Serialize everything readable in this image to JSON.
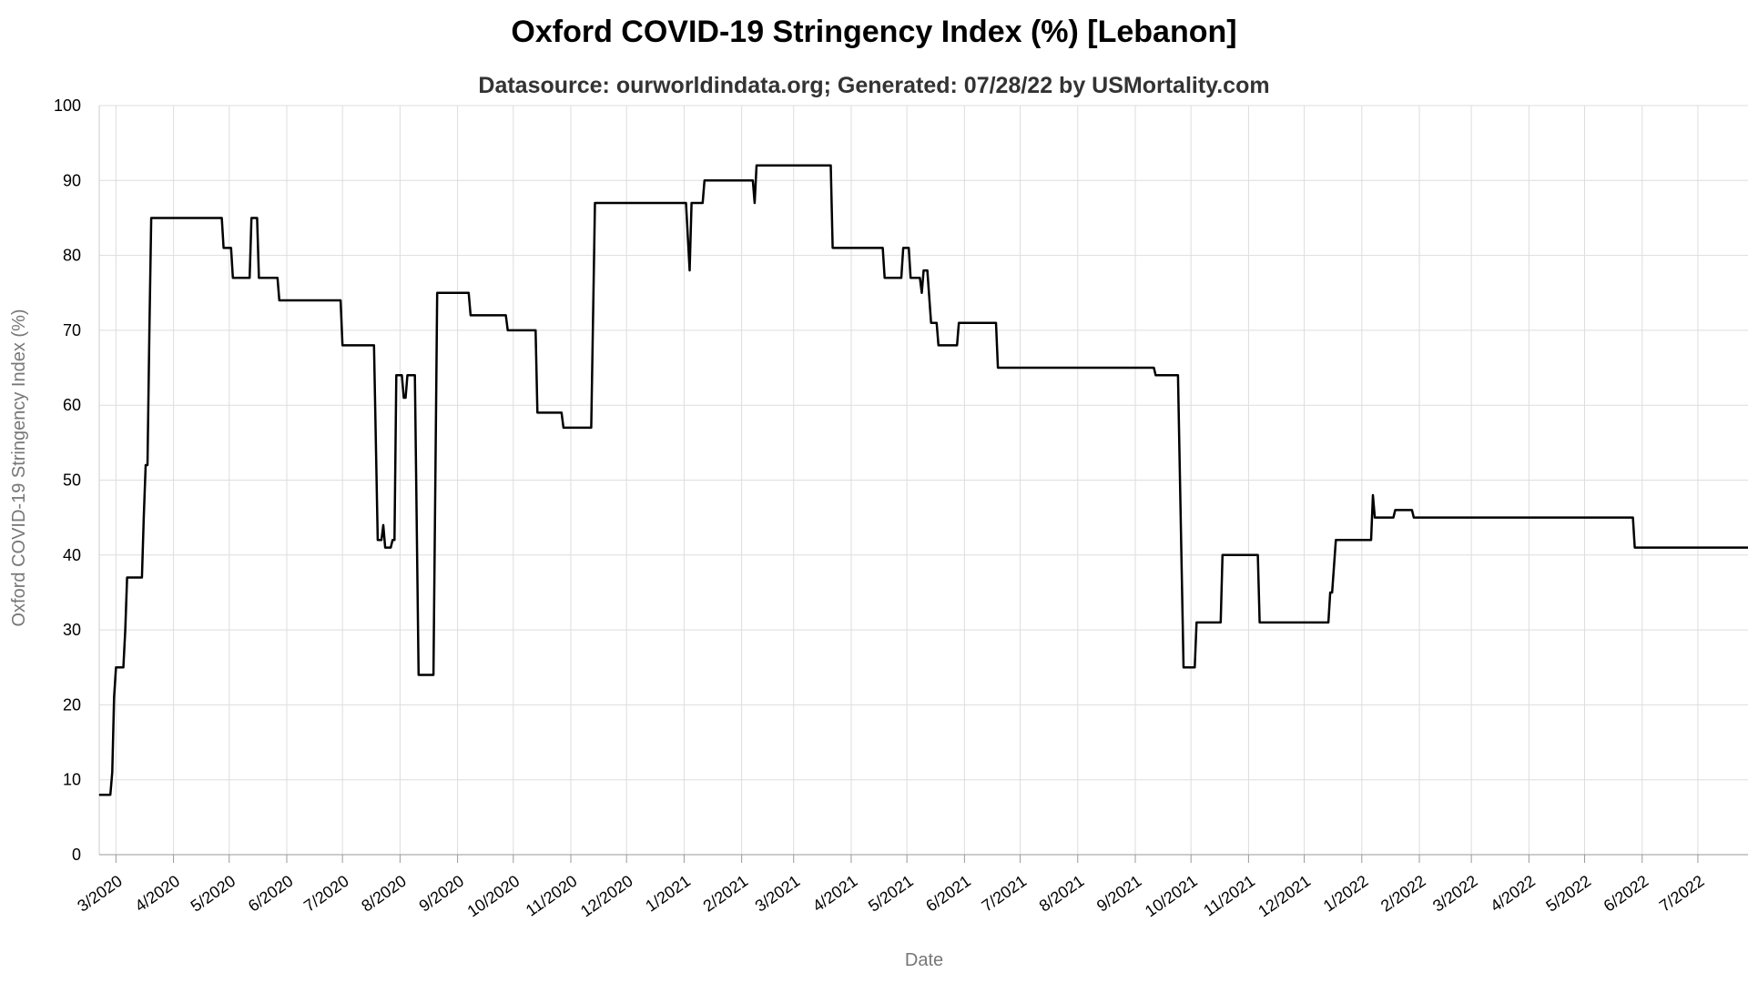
{
  "chart_data": {
    "type": "line",
    "title": "Oxford COVID-19 Stringency Index (%) [Lebanon]",
    "subtitle": "Datasource: ourworldindata.org; Generated: 07/28/22 by USMortality.com",
    "xlabel": "Date",
    "ylabel": "Oxford COVID-19 Stringency Index (%)",
    "ylim": [
      0,
      100
    ],
    "yticks": [
      0,
      10,
      20,
      30,
      40,
      50,
      60,
      70,
      80,
      90,
      100
    ],
    "xlim": [
      "2020-02-21",
      "2022-07-28"
    ],
    "xticks": [
      {
        "date": "2020-03-01",
        "label": "3/2020"
      },
      {
        "date": "2020-04-01",
        "label": "4/2020"
      },
      {
        "date": "2020-05-01",
        "label": "5/2020"
      },
      {
        "date": "2020-06-01",
        "label": "6/2020"
      },
      {
        "date": "2020-07-01",
        "label": "7/2020"
      },
      {
        "date": "2020-08-01",
        "label": "8/2020"
      },
      {
        "date": "2020-09-01",
        "label": "9/2020"
      },
      {
        "date": "2020-10-01",
        "label": "10/2020"
      },
      {
        "date": "2020-11-01",
        "label": "11/2020"
      },
      {
        "date": "2020-12-01",
        "label": "12/2020"
      },
      {
        "date": "2021-01-01",
        "label": "1/2021"
      },
      {
        "date": "2021-02-01",
        "label": "2/2021"
      },
      {
        "date": "2021-03-01",
        "label": "3/2021"
      },
      {
        "date": "2021-04-01",
        "label": "4/2021"
      },
      {
        "date": "2021-05-01",
        "label": "5/2021"
      },
      {
        "date": "2021-06-01",
        "label": "6/2021"
      },
      {
        "date": "2021-07-01",
        "label": "7/2021"
      },
      {
        "date": "2021-08-01",
        "label": "8/2021"
      },
      {
        "date": "2021-09-01",
        "label": "9/2021"
      },
      {
        "date": "2021-10-01",
        "label": "10/2021"
      },
      {
        "date": "2021-11-01",
        "label": "11/2021"
      },
      {
        "date": "2021-12-01",
        "label": "12/2021"
      },
      {
        "date": "2022-01-01",
        "label": "1/2022"
      },
      {
        "date": "2022-02-01",
        "label": "2/2022"
      },
      {
        "date": "2022-03-01",
        "label": "3/2022"
      },
      {
        "date": "2022-04-01",
        "label": "4/2022"
      },
      {
        "date": "2022-05-01",
        "label": "5/2022"
      },
      {
        "date": "2022-06-01",
        "label": "6/2022"
      },
      {
        "date": "2022-07-01",
        "label": "7/2022"
      }
    ],
    "grid": true,
    "colors": {
      "line": "#000000",
      "grid": "#dddddd",
      "axis_title": "#777777"
    },
    "series": [
      {
        "points": [
          [
            "2020-02-21",
            8.0
          ],
          [
            "2020-02-27",
            8.0
          ],
          [
            "2020-02-28",
            11
          ],
          [
            "2020-02-29",
            21
          ],
          [
            "2020-03-01",
            25.0
          ],
          [
            "2020-03-05",
            25.0
          ],
          [
            "2020-03-06",
            30
          ],
          [
            "2020-03-07",
            37.0
          ],
          [
            "2020-03-15",
            37.0
          ],
          [
            "2020-03-16",
            45
          ],
          [
            "2020-03-17",
            52.0
          ],
          [
            "2020-03-18",
            52.0
          ],
          [
            "2020-03-19",
            70
          ],
          [
            "2020-03-20",
            85.0
          ],
          [
            "2020-04-27",
            85.0
          ],
          [
            "2020-04-28",
            81.0
          ],
          [
            "2020-05-02",
            81.0
          ],
          [
            "2020-05-03",
            77.0
          ],
          [
            "2020-05-12",
            77.0
          ],
          [
            "2020-05-13",
            85.0
          ],
          [
            "2020-05-16",
            85.0
          ],
          [
            "2020-05-17",
            77.0
          ],
          [
            "2020-05-27",
            77.0
          ],
          [
            "2020-05-28",
            74.0
          ],
          [
            "2020-06-30",
            74.0
          ],
          [
            "2020-07-01",
            68.0
          ],
          [
            "2020-07-18",
            68.0
          ],
          [
            "2020-07-20",
            42.0
          ],
          [
            "2020-07-22",
            42.0
          ],
          [
            "2020-07-23",
            44.0
          ],
          [
            "2020-07-24",
            41.0
          ],
          [
            "2020-07-27",
            41.0
          ],
          [
            "2020-07-28",
            42.0
          ],
          [
            "2020-07-29",
            42.0
          ],
          [
            "2020-07-30",
            64.0
          ],
          [
            "2020-08-02",
            64.0
          ],
          [
            "2020-08-03",
            61.0
          ],
          [
            "2020-08-04",
            61.0
          ],
          [
            "2020-08-05",
            64.0
          ],
          [
            "2020-08-09",
            64.0
          ],
          [
            "2020-08-11",
            24.0
          ],
          [
            "2020-08-19",
            24.0
          ],
          [
            "2020-08-21",
            75.0
          ],
          [
            "2020-09-07",
            75.0
          ],
          [
            "2020-09-08",
            72.0
          ],
          [
            "2020-09-27",
            72.0
          ],
          [
            "2020-09-28",
            70.0
          ],
          [
            "2020-10-13",
            70.0
          ],
          [
            "2020-10-14",
            59.0
          ],
          [
            "2020-10-27",
            59.0
          ],
          [
            "2020-10-28",
            57.0
          ],
          [
            "2020-11-12",
            57.0
          ],
          [
            "2020-11-14",
            87.0
          ],
          [
            "2021-01-02",
            87.0
          ],
          [
            "2021-01-04",
            78.0
          ],
          [
            "2021-01-05",
            87.0
          ],
          [
            "2021-01-11",
            87.0
          ],
          [
            "2021-01-12",
            90.0
          ],
          [
            "2021-02-07",
            90.0
          ],
          [
            "2021-02-08",
            87.0
          ],
          [
            "2021-02-09",
            92.0
          ],
          [
            "2021-03-21",
            92.0
          ],
          [
            "2021-03-22",
            81.0
          ],
          [
            "2021-04-18",
            81.0
          ],
          [
            "2021-04-19",
            77.0
          ],
          [
            "2021-04-28",
            77.0
          ],
          [
            "2021-04-29",
            81.0
          ],
          [
            "2021-05-02",
            81.0
          ],
          [
            "2021-05-03",
            77.0
          ],
          [
            "2021-05-08",
            77.0
          ],
          [
            "2021-05-09",
            75.0
          ],
          [
            "2021-05-10",
            78.0
          ],
          [
            "2021-05-12",
            78.0
          ],
          [
            "2021-05-14",
            71.0
          ],
          [
            "2021-05-17",
            71.0
          ],
          [
            "2021-05-18",
            68.0
          ],
          [
            "2021-05-28",
            68.0
          ],
          [
            "2021-05-29",
            71.0
          ],
          [
            "2021-06-18",
            71.0
          ],
          [
            "2021-06-19",
            65.0
          ],
          [
            "2021-09-11",
            65.0
          ],
          [
            "2021-09-12",
            64.0
          ],
          [
            "2021-09-24",
            64.0
          ],
          [
            "2021-09-27",
            25.0
          ],
          [
            "2021-10-03",
            25.0
          ],
          [
            "2021-10-04",
            31.0
          ],
          [
            "2021-10-17",
            31.0
          ],
          [
            "2021-10-18",
            40.0
          ],
          [
            "2021-11-06",
            40.0
          ],
          [
            "2021-11-07",
            31.0
          ],
          [
            "2021-12-14",
            31.0
          ],
          [
            "2021-12-15",
            35.0
          ],
          [
            "2021-12-16",
            35.0
          ],
          [
            "2021-12-18",
            42.0
          ],
          [
            "2022-01-06",
            42.0
          ],
          [
            "2022-01-07",
            48.0
          ],
          [
            "2022-01-08",
            45.0
          ],
          [
            "2022-01-18",
            45.0
          ],
          [
            "2022-01-19",
            46.0
          ],
          [
            "2022-01-28",
            46.0
          ],
          [
            "2022-01-29",
            45.0
          ],
          [
            "2022-05-27",
            45.0
          ],
          [
            "2022-05-28",
            41.0
          ],
          [
            "2022-07-28",
            41.0
          ]
        ]
      }
    ]
  }
}
